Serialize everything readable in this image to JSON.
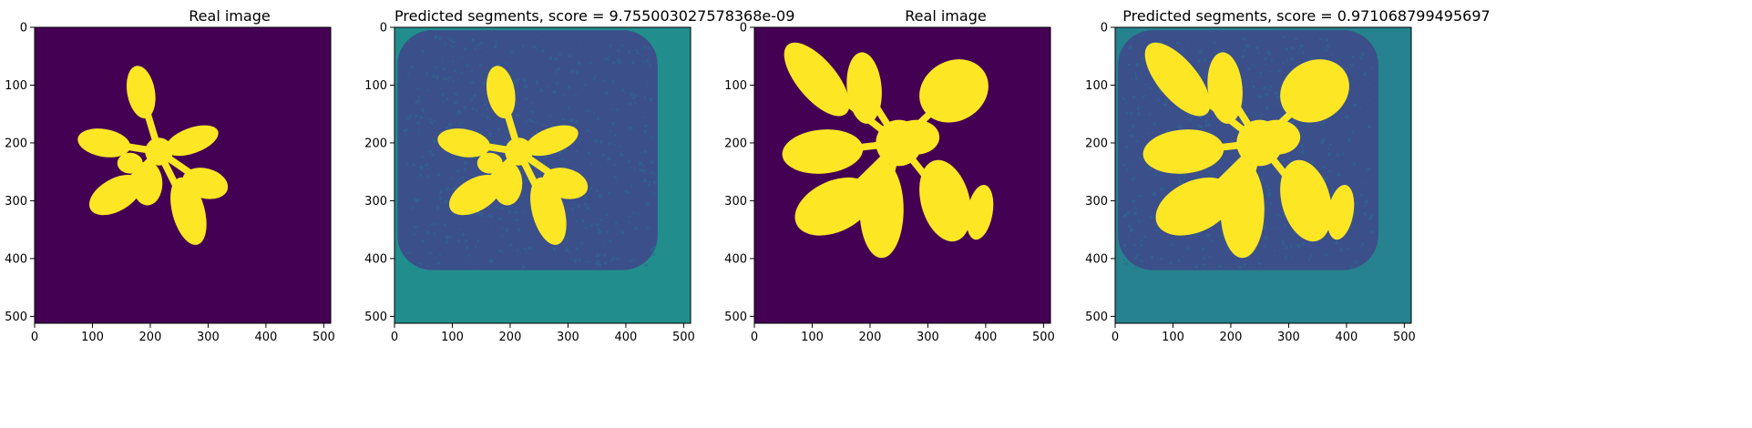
{
  "panels": [
    {
      "title": "Real image",
      "kind": "mask",
      "colors": {
        "background": "#440154",
        "foreground": "#fde725"
      },
      "x_ticks": [
        0,
        100,
        200,
        300,
        400,
        500
      ],
      "y_ticks": [
        0,
        100,
        200,
        300,
        400,
        500
      ],
      "extent": [
        0,
        512
      ],
      "plant": "small"
    },
    {
      "title": "Predicted segments, score = 9.755003027578368e-09",
      "kind": "prediction",
      "colors": {
        "background": "#3b4f8a",
        "tray": "#218e8d",
        "foreground": "#fde725"
      },
      "x_ticks": [
        0,
        100,
        200,
        300,
        400,
        500
      ],
      "y_ticks": [
        0,
        100,
        200,
        300,
        400,
        500
      ],
      "extent": [
        0,
        512
      ],
      "plant": "small"
    },
    {
      "title": "Real image",
      "kind": "mask",
      "colors": {
        "background": "#440154",
        "foreground": "#fde725"
      },
      "x_ticks": [
        0,
        100,
        200,
        300,
        400,
        500
      ],
      "y_ticks": [
        0,
        100,
        200,
        300,
        400,
        500
      ],
      "extent": [
        0,
        512
      ],
      "plant": "large"
    },
    {
      "title": "Predicted segments, score = 0.971068799495697",
      "kind": "prediction",
      "colors": {
        "background": "#3b4f8a",
        "tray": "#26828e",
        "foreground": "#fde725"
      },
      "x_ticks": [
        0,
        100,
        200,
        300,
        400,
        500
      ],
      "y_ticks": [
        0,
        100,
        200,
        300,
        400,
        500
      ],
      "extent": [
        0,
        512
      ],
      "plant": "large"
    }
  ]
}
